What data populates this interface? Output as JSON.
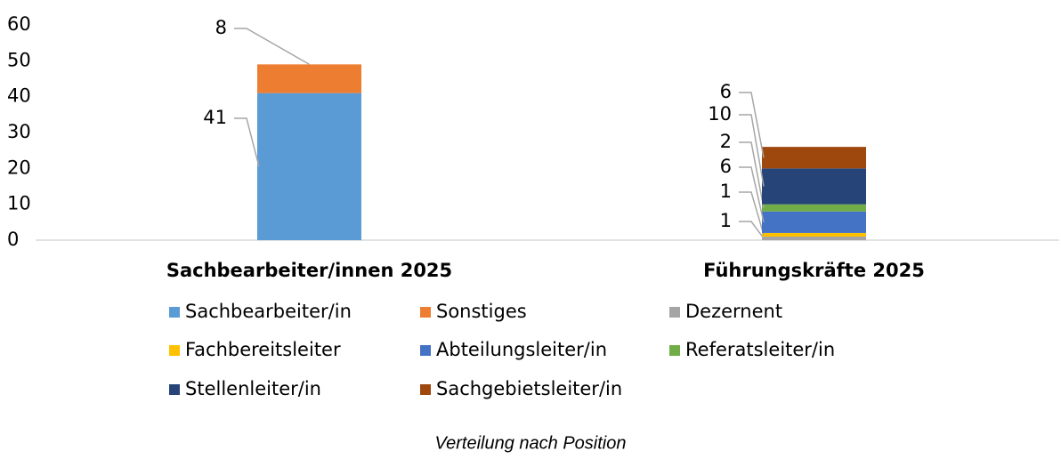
{
  "chart_data": {
    "type": "stacked_bar",
    "caption": "Verteilung nach Position",
    "categories": [
      "Sachbearbeiter/innen 2025",
      "Führungskräfte 2025"
    ],
    "series": [
      {
        "name": "Sachbearbeiter/in",
        "color": "#5b9bd5",
        "values": [
          41,
          null
        ]
      },
      {
        "name": "Sonstiges",
        "color": "#ed7d31",
        "values": [
          8,
          null
        ]
      },
      {
        "name": "Dezernent",
        "color": "#a5a5a5",
        "values": [
          null,
          1
        ]
      },
      {
        "name": "Fachbereitsleiter",
        "color": "#ffc000",
        "values": [
          null,
          1
        ]
      },
      {
        "name": "Abteilungsleiter/in",
        "color": "#4472c4",
        "values": [
          null,
          6
        ]
      },
      {
        "name": "Referatsleiter/in",
        "color": "#70ad47",
        "values": [
          null,
          2
        ]
      },
      {
        "name": "Stellenleiter/in",
        "color": "#264478",
        "values": [
          null,
          10
        ]
      },
      {
        "name": "Sachgebietsleiter/in",
        "color": "#9e480e",
        "values": [
          null,
          6
        ]
      }
    ],
    "ylim": [
      0,
      60
    ],
    "yticks": [
      0,
      10,
      20,
      30,
      40,
      50,
      60
    ],
    "grid": false,
    "legend": "bottom"
  }
}
